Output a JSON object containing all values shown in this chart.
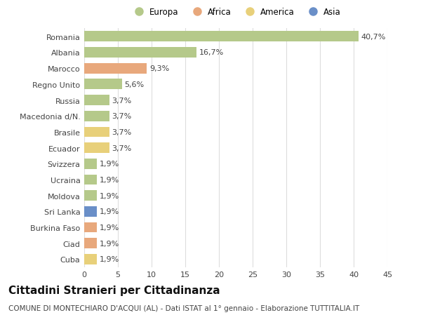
{
  "categories": [
    "Romania",
    "Albania",
    "Marocco",
    "Regno Unito",
    "Russia",
    "Macedonia d/N.",
    "Brasile",
    "Ecuador",
    "Svizzera",
    "Ucraina",
    "Moldova",
    "Sri Lanka",
    "Burkina Faso",
    "Ciad",
    "Cuba"
  ],
  "values": [
    40.7,
    16.7,
    9.3,
    5.6,
    3.7,
    3.7,
    3.7,
    3.7,
    1.9,
    1.9,
    1.9,
    1.9,
    1.9,
    1.9,
    1.9
  ],
  "labels": [
    "40,7%",
    "16,7%",
    "9,3%",
    "5,6%",
    "3,7%",
    "3,7%",
    "3,7%",
    "3,7%",
    "1,9%",
    "1,9%",
    "1,9%",
    "1,9%",
    "1,9%",
    "1,9%",
    "1,9%"
  ],
  "colors": [
    "#b5c98a",
    "#b5c98a",
    "#e8a87c",
    "#b5c98a",
    "#b5c98a",
    "#b5c98a",
    "#e8d07a",
    "#e8d07a",
    "#b5c98a",
    "#b5c98a",
    "#b5c98a",
    "#6a8fc8",
    "#e8a87c",
    "#e8a87c",
    "#e8d07a"
  ],
  "legend": [
    {
      "label": "Europa",
      "color": "#b5c98a"
    },
    {
      "label": "Africa",
      "color": "#e8a87c"
    },
    {
      "label": "America",
      "color": "#e8d07a"
    },
    {
      "label": "Asia",
      "color": "#6a8fc8"
    }
  ],
  "title": "Cittadini Stranieri per Cittadinanza",
  "subtitle": "COMUNE DI MONTECHIARO D'ACQUI (AL) - Dati ISTAT al 1° gennaio - Elaborazione TUTTITALIA.IT",
  "xlim": [
    0,
    45
  ],
  "xticks": [
    0,
    5,
    10,
    15,
    20,
    25,
    30,
    35,
    40,
    45
  ],
  "background_color": "#ffffff",
  "grid_color": "#dddddd",
  "bar_height": 0.65,
  "label_fontsize": 8,
  "tick_fontsize": 8,
  "title_fontsize": 11,
  "subtitle_fontsize": 7.5
}
